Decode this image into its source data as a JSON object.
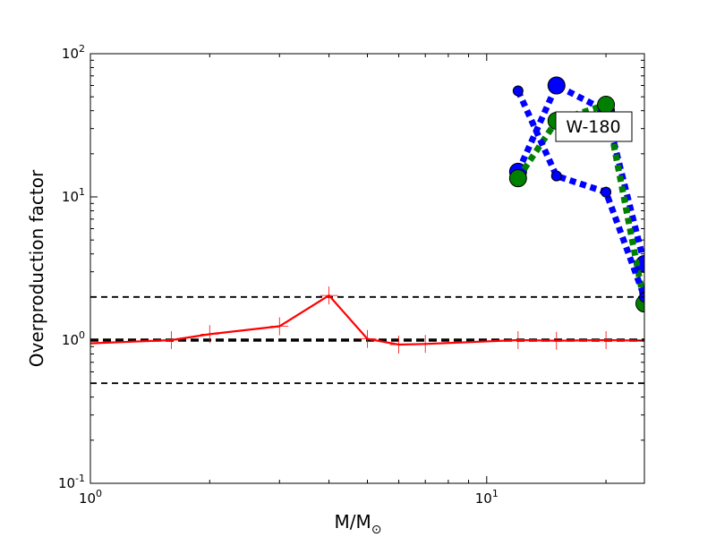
{
  "chart_data": {
    "type": "line",
    "xscale": "log",
    "yscale": "log",
    "xlim": [
      1,
      25
    ],
    "ylim": [
      0.1,
      100
    ],
    "xlabel": "M/M",
    "xlabel_subscript": "⊙",
    "ylabel": "Overproduction factor",
    "xticks": [
      {
        "value": 1,
        "base": "10",
        "exp": "0"
      },
      {
        "value": 10,
        "base": "10",
        "exp": "1"
      }
    ],
    "yticks": [
      {
        "value": 0.1,
        "base": "10",
        "exp": "-1"
      },
      {
        "value": 1,
        "base": "10",
        "exp": "0"
      },
      {
        "value": 10,
        "base": "10",
        "exp": "1"
      },
      {
        "value": 100,
        "base": "10",
        "exp": "2"
      }
    ],
    "annotation": "W-180",
    "reference_lines": [
      {
        "y": 2.0,
        "style": "dashed",
        "width": "thin"
      },
      {
        "y": 1.0,
        "style": "dashed",
        "width": "thick"
      },
      {
        "y": 0.5,
        "style": "dashed",
        "width": "thin"
      }
    ],
    "series": [
      {
        "color": "#ff0000",
        "style": "solid-plus",
        "x": [
          1.0,
          1.6,
          2.0,
          3.0,
          4.0,
          5.0,
          6.0,
          7.0,
          12.0,
          15.0,
          20.0,
          25.0
        ],
        "y": [
          0.95,
          1.0,
          1.1,
          1.25,
          2.05,
          1.02,
          0.93,
          0.94,
          1.0,
          0.99,
          1.0,
          0.99
        ]
      },
      {
        "color": "#0000ff",
        "style": "dotted-large-markers",
        "x": [
          12.0,
          15.0,
          20.0,
          25.0
        ],
        "y": [
          15.0,
          60.0,
          40.0,
          3.4
        ]
      },
      {
        "color": "#008000",
        "style": "dotted-large-markers",
        "x": [
          12.0,
          15.0,
          20.0,
          25.0
        ],
        "y": [
          13.5,
          34.0,
          44.0,
          1.8
        ]
      },
      {
        "color": "#0000ff",
        "style": "dotted-small-markers",
        "x": [
          12.0,
          15.0,
          20.0,
          25.0
        ],
        "y": [
          55.0,
          14.0,
          10.8,
          2.0
        ]
      }
    ]
  }
}
